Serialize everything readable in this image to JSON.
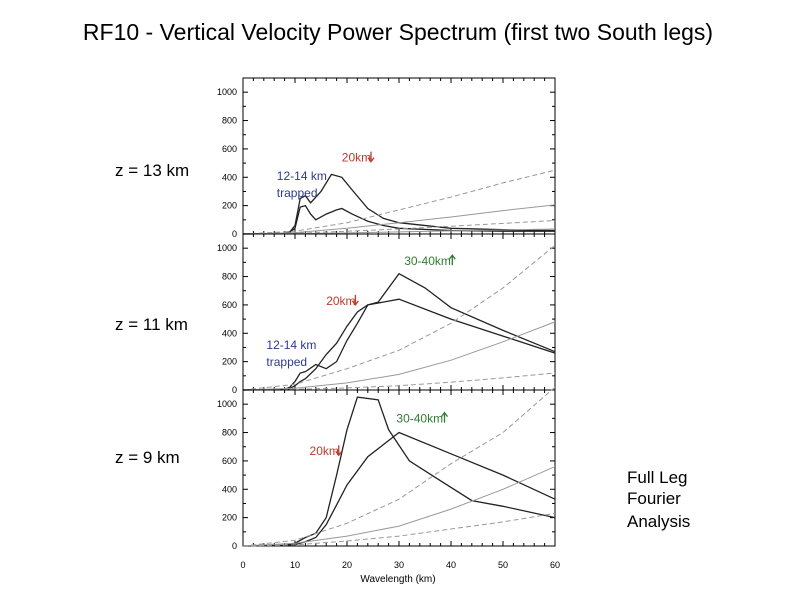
{
  "title": "RF10 - Vertical Velocity Power Spectrum (first two South legs)",
  "note_lines": [
    "Full Leg",
    "Fourier",
    "Analysis"
  ],
  "colors": {
    "red": "#c0392b",
    "blue": "#2e3a8c",
    "green": "#2e7d32",
    "ref_line": "#999999",
    "data_line": "#222222"
  },
  "chart_data": {
    "type": "line",
    "xlabel": "Wavelength (km)",
    "xlim": [
      0,
      60
    ],
    "xticks": [
      0,
      10,
      20,
      30,
      40,
      50,
      60
    ],
    "panels": [
      {
        "label": "z = 13 km",
        "ylim": [
          0,
          1100
        ],
        "yticks": [
          0,
          200,
          400,
          600,
          800,
          1000
        ],
        "series": [
          {
            "name": "leg 1",
            "style": "solid",
            "points": [
              [
                0,
                0
              ],
              [
                5,
                2
              ],
              [
                8,
                5
              ],
              [
                9,
                15
              ],
              [
                10,
                60
              ],
              [
                11,
                250
              ],
              [
                12,
                270
              ],
              [
                13,
                220
              ],
              [
                15,
                300
              ],
              [
                17,
                420
              ],
              [
                19,
                400
              ],
              [
                21,
                310
              ],
              [
                24,
                180
              ],
              [
                27,
                110
              ],
              [
                30,
                80
              ],
              [
                40,
                40
              ],
              [
                50,
                30
              ],
              [
                60,
                25
              ]
            ]
          },
          {
            "name": "leg 2",
            "style": "solid",
            "points": [
              [
                0,
                0
              ],
              [
                5,
                2
              ],
              [
                8,
                5
              ],
              [
                9,
                12
              ],
              [
                10,
                40
              ],
              [
                11,
                190
              ],
              [
                12,
                200
              ],
              [
                13,
                140
              ],
              [
                14,
                100
              ],
              [
                16,
                140
              ],
              [
                18,
                170
              ],
              [
                19,
                180
              ],
              [
                21,
                140
              ],
              [
                24,
                90
              ],
              [
                27,
                60
              ],
              [
                30,
                40
              ],
              [
                40,
                25
              ],
              [
                50,
                20
              ],
              [
                60,
                20
              ]
            ]
          },
          {
            "name": "ref dashed 1",
            "style": "dashed",
            "points": [
              [
                0,
                0
              ],
              [
                10,
                20
              ],
              [
                20,
                80
              ],
              [
                30,
                170
              ],
              [
                40,
                260
              ],
              [
                50,
                360
              ],
              [
                60,
                450
              ]
            ]
          },
          {
            "name": "ref solid 1",
            "style": "gray",
            "points": [
              [
                0,
                0
              ],
              [
                10,
                10
              ],
              [
                20,
                40
              ],
              [
                30,
                80
              ],
              [
                40,
                120
              ],
              [
                50,
                165
              ],
              [
                60,
                205
              ]
            ]
          },
          {
            "name": "ref dashed 2",
            "style": "dashed",
            "points": [
              [
                0,
                0
              ],
              [
                10,
                5
              ],
              [
                20,
                20
              ],
              [
                30,
                35
              ],
              [
                40,
                55
              ],
              [
                50,
                75
              ],
              [
                60,
                95
              ]
            ]
          },
          {
            "name": "ref solid 2",
            "style": "gray",
            "points": [
              [
                0,
                0
              ],
              [
                10,
                3
              ],
              [
                20,
                8
              ],
              [
                30,
                15
              ],
              [
                40,
                22
              ],
              [
                50,
                28
              ],
              [
                60,
                35
              ]
            ]
          }
        ],
        "annotations": [
          {
            "text": "20km",
            "arrow": "down",
            "color": "red",
            "x": 19,
            "y": 510
          },
          {
            "text": "12-14 km",
            "color": "blue",
            "x": 6.5,
            "y": 380
          },
          {
            "text": "trapped",
            "color": "blue",
            "x": 6.5,
            "y": 260
          }
        ]
      },
      {
        "label": "z = 11 km",
        "ylim": [
          0,
          1100
        ],
        "yticks": [
          0,
          200,
          400,
          600,
          800,
          1000
        ],
        "series": [
          {
            "name": "leg 1",
            "style": "solid",
            "points": [
              [
                0,
                0
              ],
              [
                8,
                5
              ],
              [
                9,
                20
              ],
              [
                10,
                60
              ],
              [
                11,
                120
              ],
              [
                12,
                130
              ],
              [
                14,
                180
              ],
              [
                16,
                150
              ],
              [
                18,
                200
              ],
              [
                20,
                350
              ],
              [
                22,
                470
              ],
              [
                24,
                600
              ],
              [
                26,
                620
              ],
              [
                28,
                720
              ],
              [
                30,
                820
              ],
              [
                35,
                720
              ],
              [
                40,
                580
              ],
              [
                50,
                420
              ],
              [
                60,
                270
              ]
            ]
          },
          {
            "name": "leg 2",
            "style": "solid",
            "points": [
              [
                0,
                0
              ],
              [
                8,
                3
              ],
              [
                9,
                10
              ],
              [
                10,
                30
              ],
              [
                11,
                60
              ],
              [
                12,
                80
              ],
              [
                14,
                150
              ],
              [
                16,
                250
              ],
              [
                18,
                330
              ],
              [
                20,
                450
              ],
              [
                22,
                550
              ],
              [
                24,
                600
              ],
              [
                30,
                640
              ],
              [
                40,
                500
              ],
              [
                50,
                380
              ],
              [
                60,
                260
              ]
            ]
          },
          {
            "name": "ref dashed 1",
            "style": "dashed",
            "points": [
              [
                0,
                0
              ],
              [
                10,
                40
              ],
              [
                20,
                150
              ],
              [
                30,
                280
              ],
              [
                40,
                470
              ],
              [
                50,
                720
              ],
              [
                60,
                1020
              ]
            ]
          },
          {
            "name": "ref solid 1",
            "style": "gray",
            "points": [
              [
                0,
                0
              ],
              [
                10,
                12
              ],
              [
                20,
                50
              ],
              [
                30,
                110
              ],
              [
                40,
                210
              ],
              [
                50,
                340
              ],
              [
                60,
                480
              ]
            ]
          },
          {
            "name": "ref dashed 2",
            "style": "dashed",
            "points": [
              [
                0,
                0
              ],
              [
                10,
                5
              ],
              [
                20,
                15
              ],
              [
                30,
                30
              ],
              [
                40,
                55
              ],
              [
                50,
                85
              ],
              [
                60,
                120
              ]
            ]
          }
        ],
        "annotations": [
          {
            "text": "30-40km",
            "arrow": "up",
            "color": "green",
            "x": 31,
            "y": 880
          },
          {
            "text": "20km",
            "arrow": "down",
            "color": "red",
            "x": 16,
            "y": 600
          },
          {
            "text": "12-14 km",
            "color": "blue",
            "x": 4.5,
            "y": 290
          },
          {
            "text": "trapped",
            "color": "blue",
            "x": 4.5,
            "y": 170
          }
        ]
      },
      {
        "label": "z = 9 km",
        "ylim": [
          0,
          1100
        ],
        "yticks": [
          0,
          200,
          400,
          600,
          800,
          1000
        ],
        "series": [
          {
            "name": "leg 1",
            "style": "solid",
            "points": [
              [
                0,
                0
              ],
              [
                8,
                5
              ],
              [
                10,
                20
              ],
              [
                12,
                60
              ],
              [
                14,
                90
              ],
              [
                16,
                200
              ],
              [
                18,
                500
              ],
              [
                20,
                820
              ],
              [
                22,
                1050
              ],
              [
                26,
                1030
              ],
              [
                28,
                820
              ],
              [
                32,
                600
              ],
              [
                38,
                460
              ],
              [
                44,
                320
              ],
              [
                50,
                280
              ],
              [
                60,
                200
              ]
            ]
          },
          {
            "name": "leg 2",
            "style": "solid",
            "points": [
              [
                0,
                0
              ],
              [
                8,
                3
              ],
              [
                10,
                10
              ],
              [
                12,
                30
              ],
              [
                14,
                60
              ],
              [
                16,
                150
              ],
              [
                18,
                290
              ],
              [
                20,
                430
              ],
              [
                24,
                630
              ],
              [
                30,
                800
              ],
              [
                40,
                650
              ],
              [
                50,
                500
              ],
              [
                60,
                330
              ]
            ]
          },
          {
            "name": "ref dashed 1",
            "style": "dashed",
            "points": [
              [
                0,
                0
              ],
              [
                10,
                40
              ],
              [
                20,
                160
              ],
              [
                30,
                330
              ],
              [
                40,
                580
              ],
              [
                50,
                800
              ],
              [
                60,
                1120
              ]
            ]
          },
          {
            "name": "ref solid 1",
            "style": "gray",
            "points": [
              [
                0,
                0
              ],
              [
                10,
                20
              ],
              [
                20,
                70
              ],
              [
                30,
                140
              ],
              [
                40,
                260
              ],
              [
                50,
                400
              ],
              [
                60,
                560
              ]
            ]
          },
          {
            "name": "ref dashed 2",
            "style": "dashed",
            "points": [
              [
                0,
                0
              ],
              [
                10,
                8
              ],
              [
                20,
                35
              ],
              [
                30,
                70
              ],
              [
                40,
                120
              ],
              [
                50,
                170
              ],
              [
                60,
                230
              ]
            ]
          }
        ],
        "annotations": [
          {
            "text": "30-40km",
            "arrow": "up",
            "color": "green",
            "x": 29.5,
            "y": 870
          },
          {
            "text": "20km",
            "arrow": "down",
            "color": "red",
            "x": 12.8,
            "y": 640
          }
        ]
      }
    ]
  }
}
